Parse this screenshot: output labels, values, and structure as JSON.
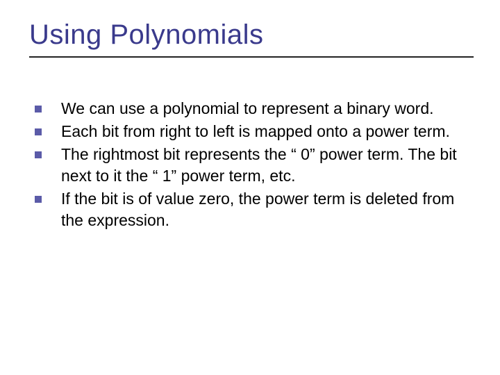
{
  "slide": {
    "title": "Using Polynomials",
    "title_color": "#3a3a8c",
    "title_fontsize": 40,
    "underline_color": "#222222",
    "bullet_color": "#5b5ba8",
    "bullet_size": 10,
    "body_fontsize": 23,
    "body_color": "#000000",
    "background_color": "#ffffff",
    "bullets": [
      "We can use a polynomial to represent a binary word.",
      "Each bit from right to left is mapped onto a power term.",
      "The rightmost bit represents the “ 0” power term. The bit next to it the “ 1” power term, etc.",
      "If the bit is of value zero, the power term is deleted from the expression."
    ]
  }
}
